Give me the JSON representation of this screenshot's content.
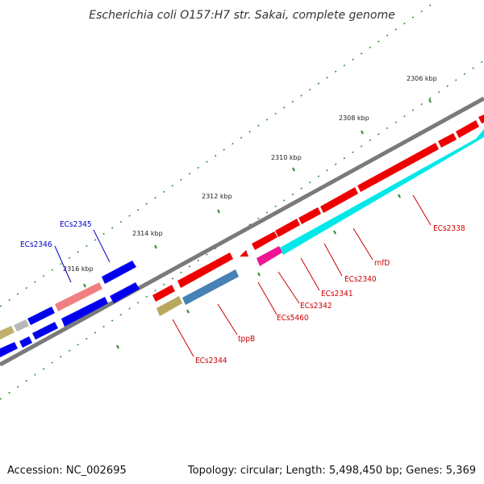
{
  "title": "Escherichia coli O157:H7 str. Sakai, complete genome",
  "accession": "Accession: NC_002695",
  "topology": "Topology: circular; Length: 5,498,450 bp; Genes: 5,369",
  "colors": {
    "backbone": "#808080",
    "tick": "#2e8b2e",
    "forward_gene": "#0000ee",
    "reverse_gene": "#ee0000",
    "label_forward": "#0000cc",
    "label_reverse": "#cc0000"
  },
  "kbp_ticks": [
    "2306 kbp",
    "2308 kbp",
    "2310 kbp",
    "2312 kbp",
    "2314 kbp",
    "2316 kbp"
  ],
  "gene_labels": {
    "ecs2345": "ECs2345",
    "ecs2346": "ECs2346",
    "ecs2338": "ECs2338",
    "rnfd": "rnfD",
    "ecs2340": "ECs2340",
    "ecs2341": "ECs2341",
    "ecs2342": "ECs2342",
    "ecs5460": "ECs5460",
    "tppb": "tppB",
    "ecs2344": "ECs2344"
  }
}
